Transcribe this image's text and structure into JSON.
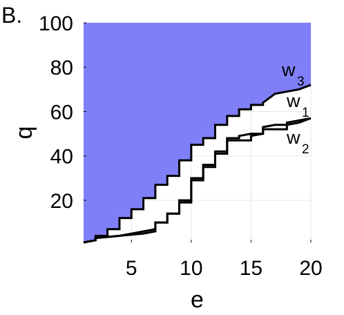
{
  "panel_label": "B.",
  "chart_data": {
    "type": "line",
    "xlabel": "e",
    "ylabel": "q",
    "xlim": [
      1,
      20
    ],
    "ylim": [
      1,
      100
    ],
    "xticks": [
      5,
      10,
      15,
      20
    ],
    "yticks": [
      20,
      40,
      60,
      80,
      100
    ],
    "grid": true,
    "fill_color": "#7f7ff8",
    "line_color": "#000000",
    "series": [
      {
        "name": "w3",
        "label": "w",
        "sub": "3",
        "values": [
          [
            1,
            1
          ],
          [
            2,
            2
          ],
          [
            2,
            4
          ],
          [
            3,
            4
          ],
          [
            3,
            7
          ],
          [
            4,
            7
          ],
          [
            4,
            12
          ],
          [
            5,
            12
          ],
          [
            5,
            16
          ],
          [
            6,
            16
          ],
          [
            6,
            21
          ],
          [
            7,
            21
          ],
          [
            7,
            27
          ],
          [
            8,
            27
          ],
          [
            8,
            31
          ],
          [
            9,
            31
          ],
          [
            9,
            38
          ],
          [
            10,
            38
          ],
          [
            10,
            45
          ],
          [
            11,
            45
          ],
          [
            11,
            48
          ],
          [
            12,
            48
          ],
          [
            12,
            54
          ],
          [
            13,
            54
          ],
          [
            13,
            58
          ],
          [
            14,
            58
          ],
          [
            14,
            61
          ],
          [
            15,
            61
          ],
          [
            15,
            63
          ],
          [
            16,
            63
          ],
          [
            16,
            64
          ],
          [
            17,
            68
          ],
          [
            18,
            69
          ],
          [
            19,
            70
          ],
          [
            20,
            72
          ]
        ]
      },
      {
        "name": "w1",
        "label": "w",
        "sub": "1",
        "values": [
          [
            1,
            1
          ],
          [
            2,
            2
          ],
          [
            2,
            3
          ],
          [
            4,
            4
          ],
          [
            6,
            6
          ],
          [
            7,
            7
          ],
          [
            7,
            10
          ],
          [
            8,
            10
          ],
          [
            8,
            14
          ],
          [
            9,
            14
          ],
          [
            9,
            20
          ],
          [
            10,
            20
          ],
          [
            10,
            30
          ],
          [
            11,
            30
          ],
          [
            11,
            36
          ],
          [
            12,
            36
          ],
          [
            12,
            42
          ],
          [
            13,
            42
          ],
          [
            13,
            48
          ],
          [
            14,
            48
          ],
          [
            14,
            49
          ],
          [
            15,
            50
          ],
          [
            16,
            50
          ],
          [
            16,
            53
          ],
          [
            17,
            54
          ],
          [
            18,
            54
          ],
          [
            19,
            55
          ],
          [
            20,
            57
          ]
        ]
      },
      {
        "name": "w2",
        "label": "w",
        "sub": "2",
        "values": [
          [
            1,
            1
          ],
          [
            2,
            2
          ],
          [
            2,
            3
          ],
          [
            4,
            4
          ],
          [
            6,
            5
          ],
          [
            7,
            6
          ],
          [
            7,
            10
          ],
          [
            8,
            10
          ],
          [
            8,
            14
          ],
          [
            9,
            14
          ],
          [
            9,
            19
          ],
          [
            10,
            19
          ],
          [
            10,
            29
          ],
          [
            11,
            29
          ],
          [
            11,
            35
          ],
          [
            12,
            35
          ],
          [
            12,
            41
          ],
          [
            13,
            41
          ],
          [
            13,
            47
          ],
          [
            15,
            47
          ],
          [
            15,
            49
          ],
          [
            16,
            50
          ],
          [
            16,
            52
          ],
          [
            18,
            52
          ],
          [
            18,
            55
          ],
          [
            19,
            56
          ],
          [
            20,
            57
          ]
        ]
      }
    ]
  }
}
